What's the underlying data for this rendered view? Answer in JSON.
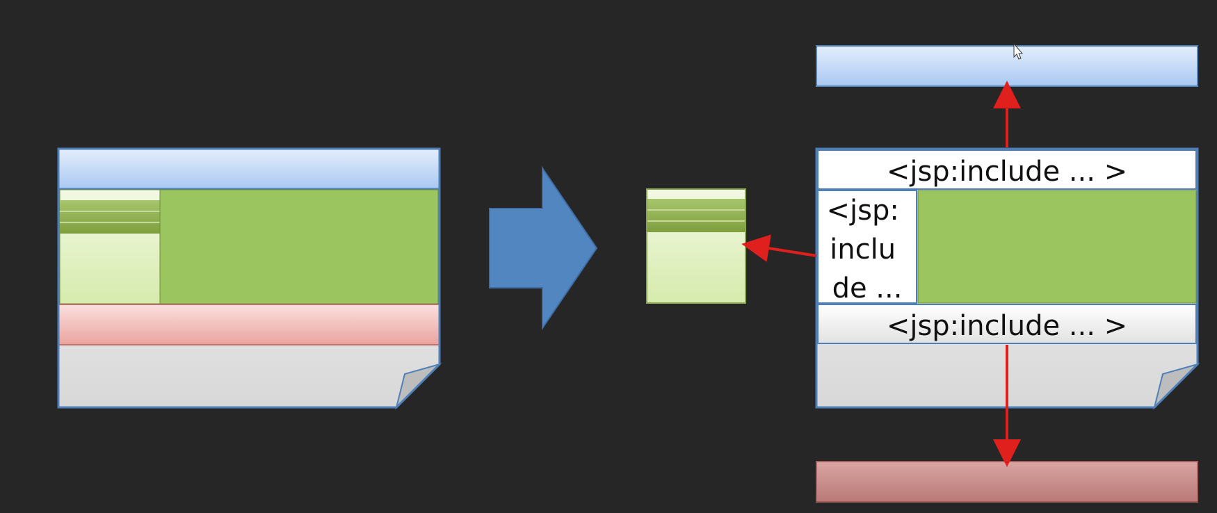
{
  "right_page": {
    "header_include": "<jsp:include ... >",
    "sidebar_include_lines": [
      "<jsp:",
      "inclu",
      "de ..."
    ],
    "footer_include": "<jsp:include ... >"
  },
  "colors": {
    "background": "#262626",
    "header_blue": "#c7dcf7",
    "body_green": "#9bc65f",
    "sidebar_light": "#e6f3c9",
    "footer_pink": "#f0b7b3",
    "paper_grey": "#e6e6e6",
    "outline_blue": "#4f7fb7",
    "arrow_red": "#e0201d",
    "process_arrow": "#5286c1"
  }
}
